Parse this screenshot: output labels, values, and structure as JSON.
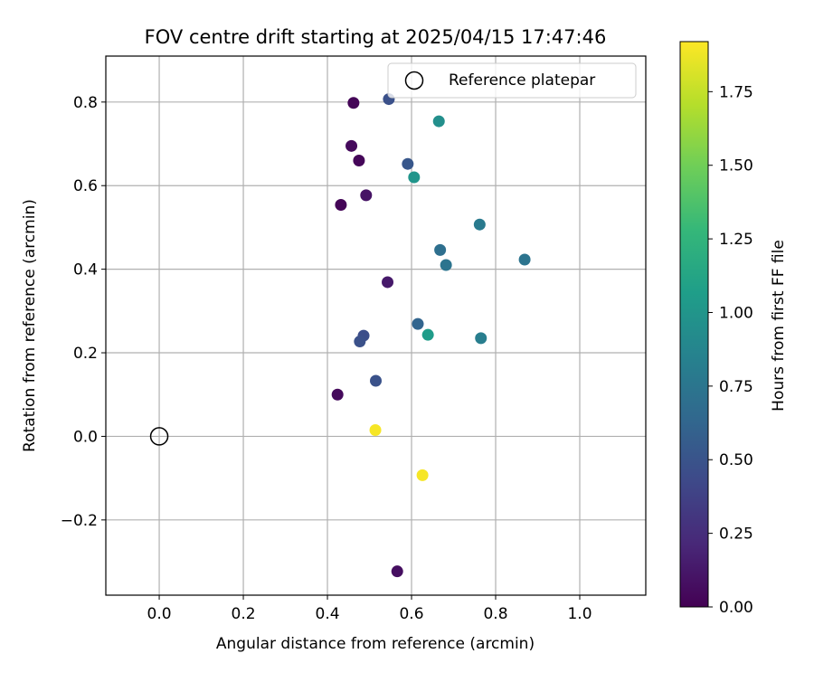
{
  "chart_data": {
    "type": "scatter",
    "title": "FOV centre drift starting at 2025/04/15 17:47:46",
    "xlabel": "Angular distance from reference (arcmin)",
    "ylabel": "Rotation from reference (arcmin)",
    "xlim": [
      -0.127,
      1.157
    ],
    "ylim": [
      -0.38,
      0.91
    ],
    "xticks": [
      0.0,
      0.2,
      0.4,
      0.6,
      0.8,
      1.0
    ],
    "xtick_labels": [
      "0.0",
      "0.2",
      "0.4",
      "0.6",
      "0.8",
      "1.0"
    ],
    "yticks": [
      -0.2,
      0.0,
      0.2,
      0.4,
      0.6,
      0.8
    ],
    "ytick_labels": [
      "−0.2",
      "0.0",
      "0.2",
      "0.4",
      "0.6",
      "0.8"
    ],
    "grid": true,
    "legend": {
      "placement": "top-right",
      "entries": [
        "Reference platepar"
      ]
    },
    "reference_point": {
      "x": 0.0,
      "y": 0.0
    },
    "colorbar": {
      "label": "Hours from first FF file",
      "colormap": "viridis",
      "range": [
        0.0,
        1.92
      ],
      "ticks": [
        0.0,
        0.25,
        0.5,
        0.75,
        1.0,
        1.25,
        1.5,
        1.75
      ],
      "tick_labels": [
        "0.00",
        "0.25",
        "0.50",
        "0.75",
        "1.00",
        "1.25",
        "1.50",
        "1.75"
      ]
    },
    "series": [
      {
        "points": [
          {
            "x": 0.462,
            "y": 0.798,
            "c": 0.02
          },
          {
            "x": 0.457,
            "y": 0.695,
            "c": 0.05
          },
          {
            "x": 0.475,
            "y": 0.66,
            "c": 0.03
          },
          {
            "x": 0.492,
            "y": 0.577,
            "c": 0.1
          },
          {
            "x": 0.432,
            "y": 0.554,
            "c": 0.02
          },
          {
            "x": 0.543,
            "y": 0.369,
            "c": 0.13
          },
          {
            "x": 0.424,
            "y": 0.1,
            "c": 0.05
          },
          {
            "x": 0.566,
            "y": -0.323,
            "c": 0.07
          },
          {
            "x": 0.546,
            "y": 0.807,
            "c": 0.48
          },
          {
            "x": 0.591,
            "y": 0.652,
            "c": 0.52
          },
          {
            "x": 0.486,
            "y": 0.241,
            "c": 0.46
          },
          {
            "x": 0.477,
            "y": 0.227,
            "c": 0.48
          },
          {
            "x": 0.515,
            "y": 0.133,
            "c": 0.49
          },
          {
            "x": 0.615,
            "y": 0.269,
            "c": 0.62
          },
          {
            "x": 0.668,
            "y": 0.446,
            "c": 0.7
          },
          {
            "x": 0.682,
            "y": 0.41,
            "c": 0.74
          },
          {
            "x": 0.869,
            "y": 0.423,
            "c": 0.74
          },
          {
            "x": 0.762,
            "y": 0.507,
            "c": 0.79
          },
          {
            "x": 0.765,
            "y": 0.235,
            "c": 0.82
          },
          {
            "x": 0.665,
            "y": 0.754,
            "c": 0.95
          },
          {
            "x": 0.606,
            "y": 0.62,
            "c": 1.0
          },
          {
            "x": 0.639,
            "y": 0.243,
            "c": 1.05
          },
          {
            "x": 0.514,
            "y": 0.015,
            "c": 1.9
          },
          {
            "x": 0.626,
            "y": -0.093,
            "c": 1.9
          }
        ]
      }
    ]
  }
}
